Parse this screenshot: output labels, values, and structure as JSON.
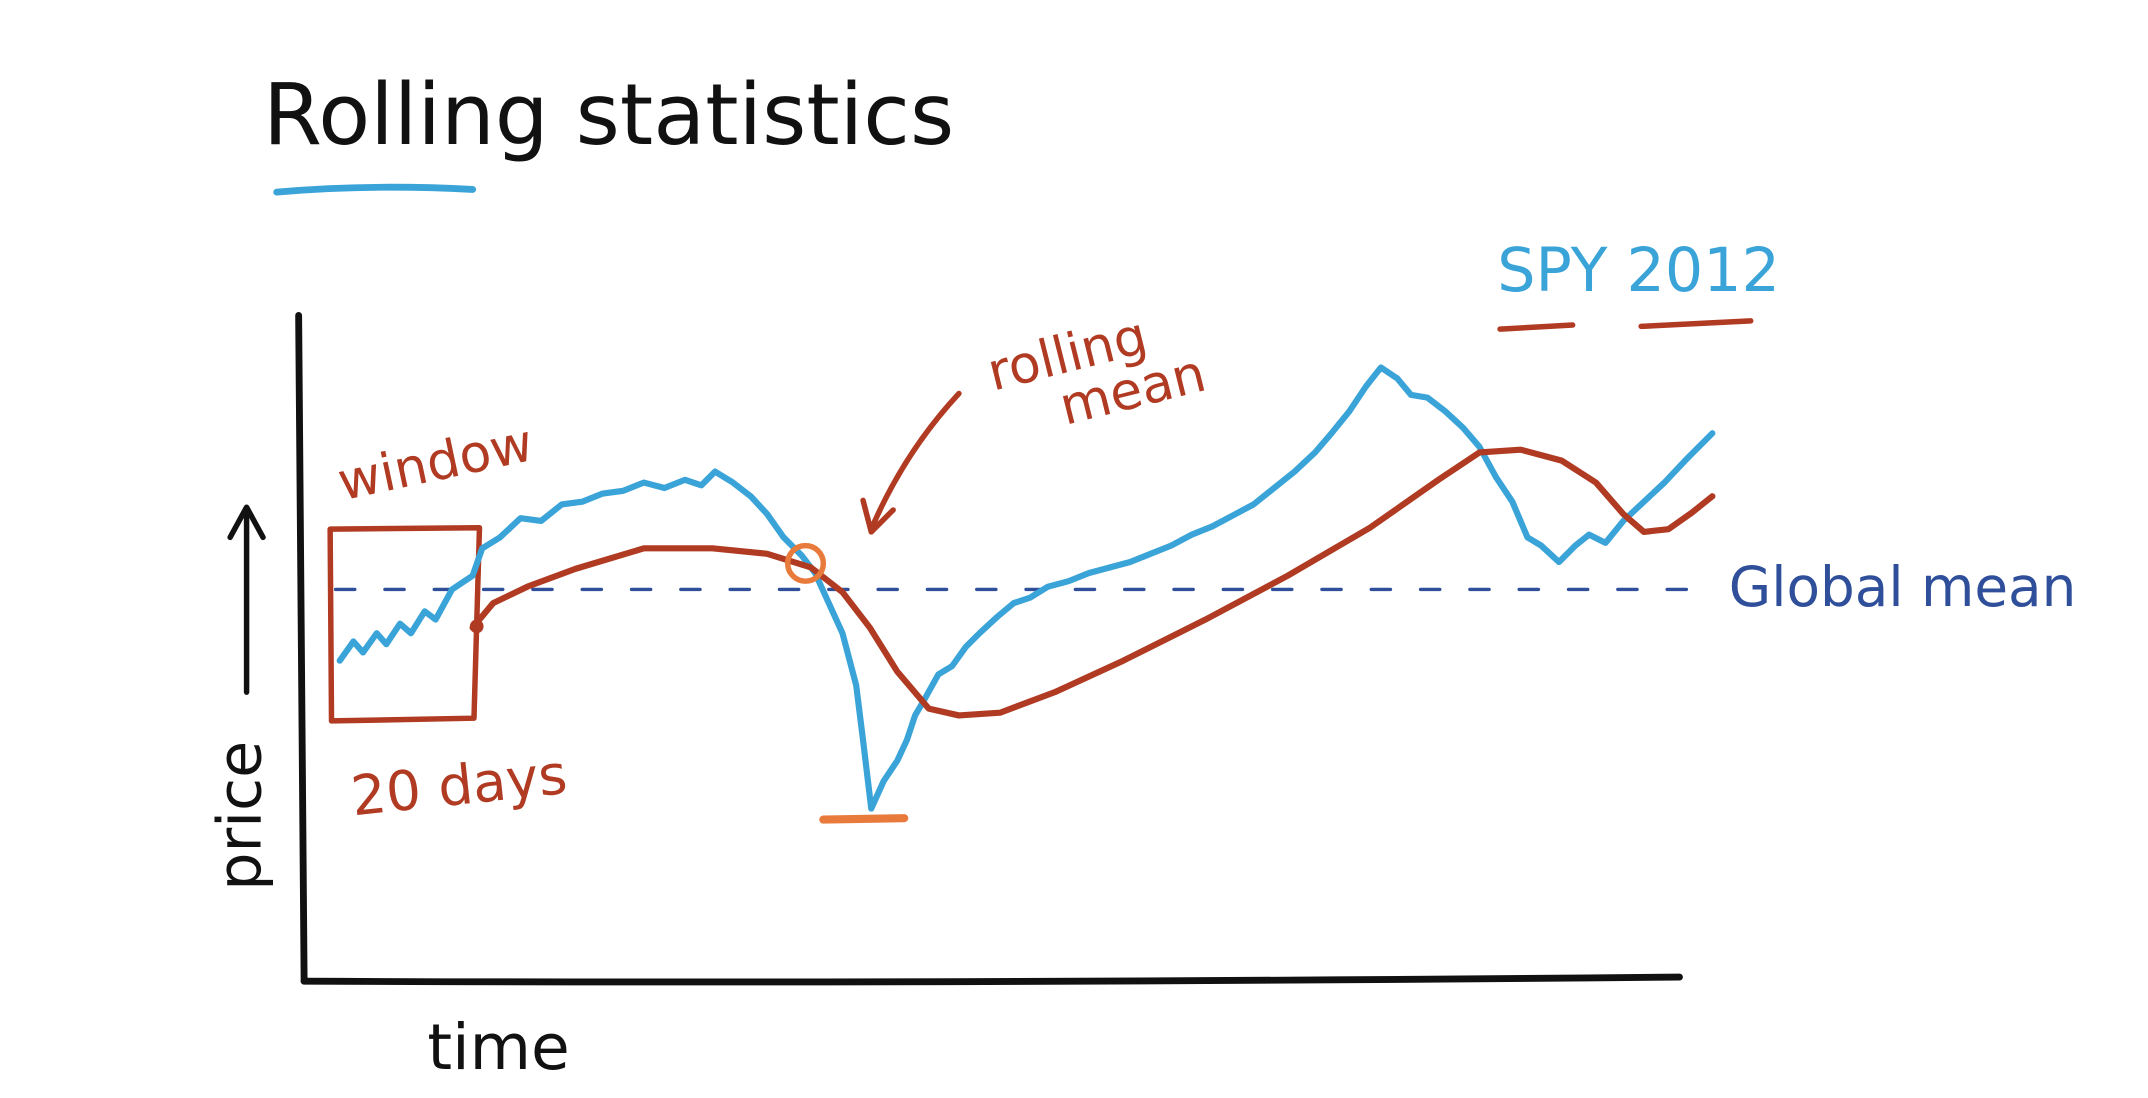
{
  "title": "Rolling statistics",
  "legend": "SPY 2012",
  "annotations": {
    "rolling_mean": [
      "rolling",
      "mean"
    ],
    "window": "window",
    "window_size": "20 days",
    "global_mean": "Global mean"
  },
  "axes": {
    "y_label": "price",
    "x_label": "time"
  }
}
